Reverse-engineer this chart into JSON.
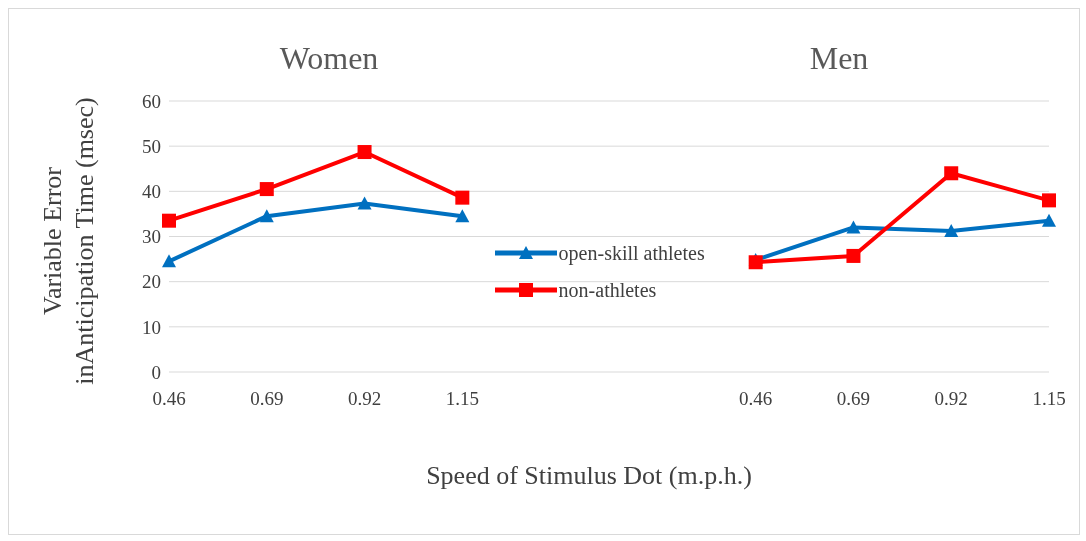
{
  "chart_data": {
    "type": "line",
    "xlabel": "Speed of Stimulus Dot (m.p.h.)",
    "ylabel": "Variable Error inAnticipation Time (msec)",
    "annotations": [
      "Women",
      "Men"
    ],
    "categories": [
      "0.46",
      "0.69",
      "0.92",
      "1.15",
      null,
      null,
      "0.46",
      "0.69",
      "0.92",
      "1.15"
    ],
    "series": [
      {
        "name": "open-skill athletes",
        "color": "#0070c0",
        "marker": "triangle",
        "values": [
          24.5,
          34.5,
          37.3,
          34.5,
          null,
          null,
          24.8,
          32,
          31.2,
          33.5
        ]
      },
      {
        "name": "non-athletes",
        "color": "#ff0000",
        "marker": "square",
        "values": [
          33.5,
          40.5,
          48.7,
          38.6,
          null,
          null,
          24.3,
          25.7,
          44,
          38
        ]
      }
    ],
    "ylim": [
      0,
      60
    ],
    "yticks": [
      0,
      10,
      20,
      30,
      40,
      50,
      60
    ],
    "grid": "y",
    "legend": "center",
    "line_style": "solid"
  }
}
